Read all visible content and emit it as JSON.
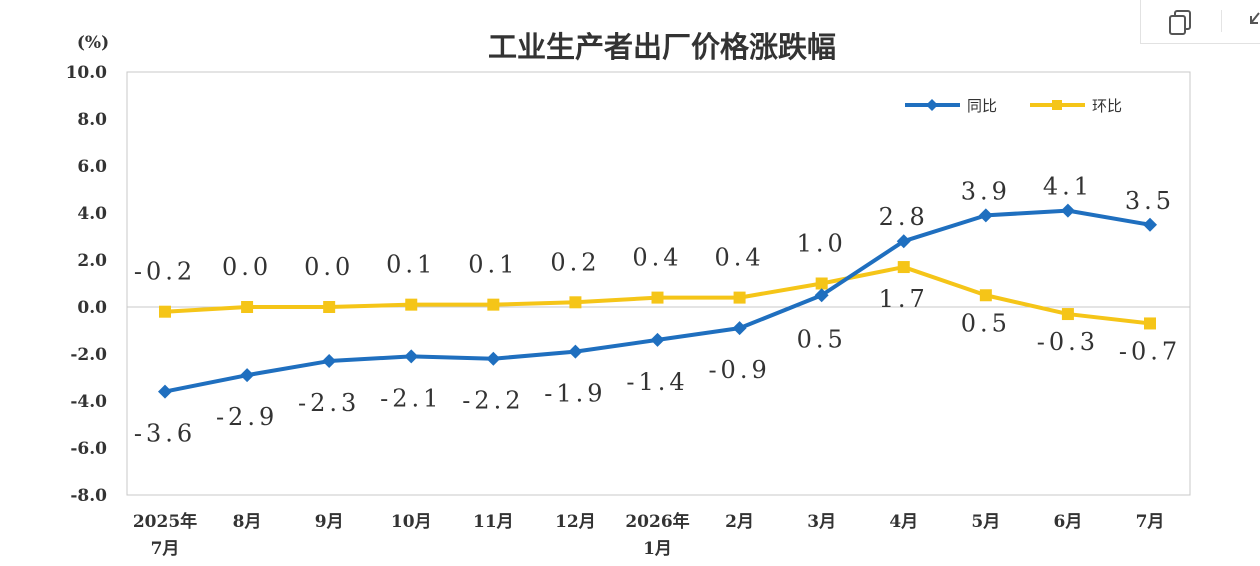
{
  "toolbar": {
    "icons": [
      "copy-icon",
      "collapse-icon"
    ]
  },
  "chart_data": {
    "type": "line",
    "title": "工业生产者出厂价格涨跌幅",
    "ylabel": "(%)",
    "xlabel": "",
    "ylim": [
      -8.0,
      10.0
    ],
    "ytick_labels": [
      "10.0",
      "8.0",
      "6.0",
      "4.0",
      "2.0",
      "0.0",
      "-2.0",
      "-4.0",
      "-6.0",
      "-8.0"
    ],
    "categories": [
      [
        "2025年",
        "7月"
      ],
      [
        "8月"
      ],
      [
        "9月"
      ],
      [
        "10月"
      ],
      [
        "11月"
      ],
      [
        "12月"
      ],
      [
        "2026年",
        "1月"
      ],
      [
        "2月"
      ],
      [
        "3月"
      ],
      [
        "4月"
      ],
      [
        "5月"
      ],
      [
        "6月"
      ],
      [
        "7月"
      ]
    ],
    "legend_position": "top-right",
    "grid": false,
    "series": [
      {
        "name": "同比",
        "color": "#1f6fbf",
        "marker": "diamond",
        "values": [
          -3.6,
          -2.9,
          -2.3,
          -2.1,
          -2.2,
          -1.9,
          -1.4,
          -0.9,
          0.5,
          2.8,
          3.9,
          4.1,
          3.5
        ],
        "labels": [
          "-3.6",
          "-2.9",
          "-2.3",
          "-2.1",
          "-2.2",
          "-1.9",
          "-1.4",
          "-0.9",
          "0.5",
          "2.8",
          "3.9",
          "4.1",
          "3.5"
        ]
      },
      {
        "name": "环比",
        "color": "#f5c518",
        "marker": "square",
        "values": [
          -0.2,
          0.0,
          0.0,
          0.1,
          0.1,
          0.2,
          0.4,
          0.4,
          1.0,
          1.7,
          0.5,
          -0.3,
          -0.7
        ],
        "labels": [
          "-0.2",
          "0.0",
          "0.0",
          "0.1",
          "0.1",
          "0.2",
          "0.4",
          "0.4",
          "1.0",
          "1.7",
          "0.5",
          "-0.3",
          "-0.7"
        ]
      }
    ]
  }
}
